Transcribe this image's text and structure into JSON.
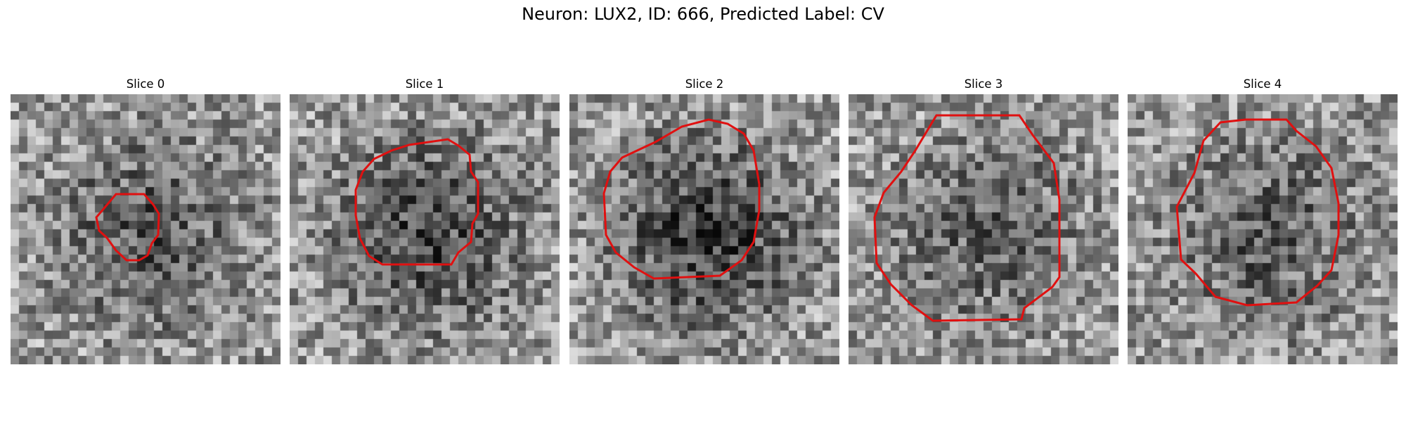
{
  "figure": {
    "title": "Neuron: LUX2, ID: 666, Predicted Label: CV",
    "contour_color": "#e01010"
  },
  "panels": [
    {
      "title": "Slice 0"
    },
    {
      "title": "Slice 1"
    },
    {
      "title": "Slice 2"
    },
    {
      "title": "Slice 3"
    },
    {
      "title": "Slice 4"
    }
  ]
}
